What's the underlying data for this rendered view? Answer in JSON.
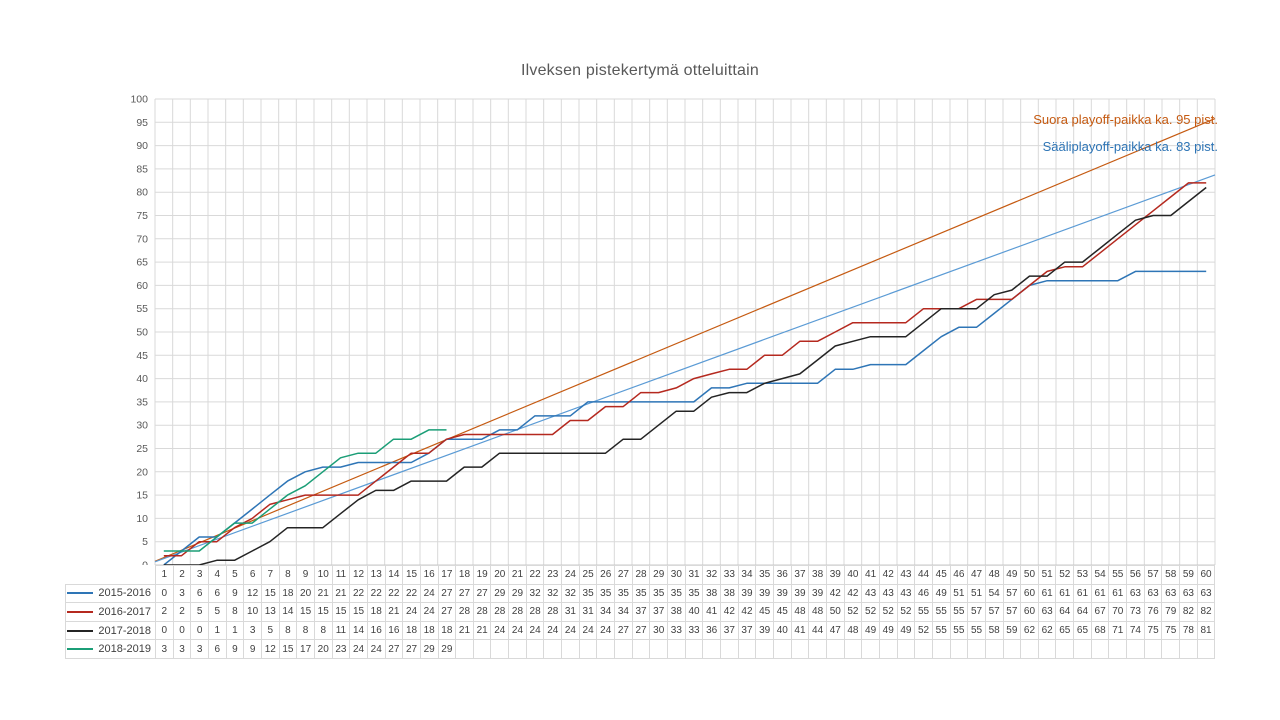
{
  "title": "Ilveksen pistekertymä otteluittain",
  "chart_data": {
    "type": "line",
    "title": "Ilveksen pistekertymä otteluittain",
    "xlabel": "",
    "ylabel": "",
    "ylim": [
      0,
      100
    ],
    "ytick_step": 5,
    "grid": true,
    "legend_position": "table-left",
    "games": [
      1,
      2,
      3,
      4,
      5,
      6,
      7,
      8,
      9,
      10,
      11,
      12,
      13,
      14,
      15,
      16,
      17,
      18,
      19,
      20,
      21,
      22,
      23,
      24,
      25,
      26,
      27,
      28,
      29,
      30,
      31,
      32,
      33,
      34,
      35,
      36,
      37,
      38,
      39,
      40,
      41,
      42,
      43,
      44,
      45,
      46,
      47,
      48,
      49,
      50,
      51,
      52,
      53,
      54,
      55,
      56,
      57,
      58,
      59,
      60
    ],
    "series": [
      {
        "name": "2015-2016",
        "color": "#2E75B6",
        "values": [
          0,
          3,
          6,
          6,
          9,
          12,
          15,
          18,
          20,
          21,
          21,
          22,
          22,
          22,
          22,
          24,
          27,
          27,
          27,
          29,
          29,
          32,
          32,
          32,
          35,
          35,
          35,
          35,
          35,
          35,
          35,
          38,
          38,
          39,
          39,
          39,
          39,
          39,
          42,
          42,
          43,
          43,
          43,
          46,
          49,
          51,
          51,
          54,
          57,
          60,
          61,
          61,
          61,
          61,
          61,
          63,
          63,
          63,
          63,
          63
        ]
      },
      {
        "name": "2016-2017",
        "color": "#B5291F",
        "values": [
          2,
          2,
          5,
          5,
          8,
          10,
          13,
          14,
          15,
          15,
          15,
          15,
          18,
          21,
          24,
          24,
          27,
          28,
          28,
          28,
          28,
          28,
          28,
          31,
          31,
          34,
          34,
          37,
          37,
          38,
          40,
          41,
          42,
          42,
          45,
          45,
          48,
          48,
          50,
          52,
          52,
          52,
          52,
          55,
          55,
          55,
          57,
          57,
          57,
          60,
          63,
          64,
          64,
          67,
          70,
          73,
          76,
          79,
          82,
          82
        ]
      },
      {
        "name": "2017-2018",
        "color": "#242424",
        "values": [
          0,
          0,
          0,
          1,
          1,
          3,
          5,
          8,
          8,
          8,
          11,
          14,
          16,
          16,
          18,
          18,
          18,
          21,
          21,
          24,
          24,
          24,
          24,
          24,
          24,
          24,
          27,
          27,
          30,
          33,
          33,
          36,
          37,
          37,
          39,
          40,
          41,
          44,
          47,
          48,
          49,
          49,
          49,
          52,
          55,
          55,
          55,
          58,
          59,
          62,
          62,
          65,
          65,
          68,
          71,
          74,
          75,
          75,
          78,
          81
        ]
      },
      {
        "name": "2018-2019",
        "color": "#1B9E77",
        "values": [
          3,
          3,
          3,
          6,
          9,
          9,
          12,
          15,
          17,
          20,
          23,
          24,
          24,
          27,
          27,
          29,
          29
        ]
      }
    ],
    "reference_lines": [
      {
        "name": "suora-playoff",
        "label": "Suora playoff-paikka ka. 95 pist.",
        "value_at_game_60": 95,
        "line_color": "#C55A11",
        "label_color": "#C55A11"
      },
      {
        "name": "saaliplayoff",
        "label": "Sääliplayoff-paikka ka. 83 pist.",
        "value_at_game_60": 83,
        "line_color": "#5B9BD5",
        "label_color": "#2E75B6"
      }
    ],
    "colors": {
      "gridline": "#d9d9d9",
      "axis_line": "#c9c9c9",
      "tick_label": "#595959",
      "table_text": "#404040"
    }
  }
}
